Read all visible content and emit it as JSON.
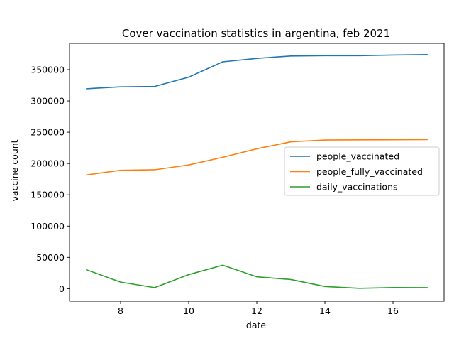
{
  "chart_data": {
    "type": "line",
    "title": "Cover vaccination statistics in argentina, feb 2021",
    "xlabel": "date",
    "ylabel": "vaccine count",
    "xlim": [
      6.5,
      17.5
    ],
    "ylim": [
      -20000,
      392000
    ],
    "x_ticks": [
      8,
      10,
      12,
      14,
      16
    ],
    "y_ticks": [
      0,
      50000,
      100000,
      150000,
      200000,
      250000,
      300000,
      350000
    ],
    "grid": false,
    "legend_position": "center-right",
    "x": [
      7,
      8,
      9,
      10,
      11,
      12,
      13,
      14,
      15,
      16,
      17
    ],
    "series": [
      {
        "name": "people_vaccinated",
        "color": "#1f77b4",
        "values": [
          319500,
          322500,
          323200,
          338000,
          362500,
          368000,
          371800,
          372300,
          372300,
          373300,
          374000
        ]
      },
      {
        "name": "people_fully_vaccinated",
        "color": "#ff7f0e",
        "values": [
          181700,
          189200,
          190000,
          197700,
          210000,
          223500,
          234700,
          237600,
          237800,
          238000,
          238200
        ]
      },
      {
        "name": "daily_vaccinations",
        "color": "#2ca02c",
        "values": [
          30200,
          10500,
          1700,
          22500,
          37600,
          19000,
          14700,
          3500,
          600,
          1800,
          1600
        ]
      }
    ]
  }
}
